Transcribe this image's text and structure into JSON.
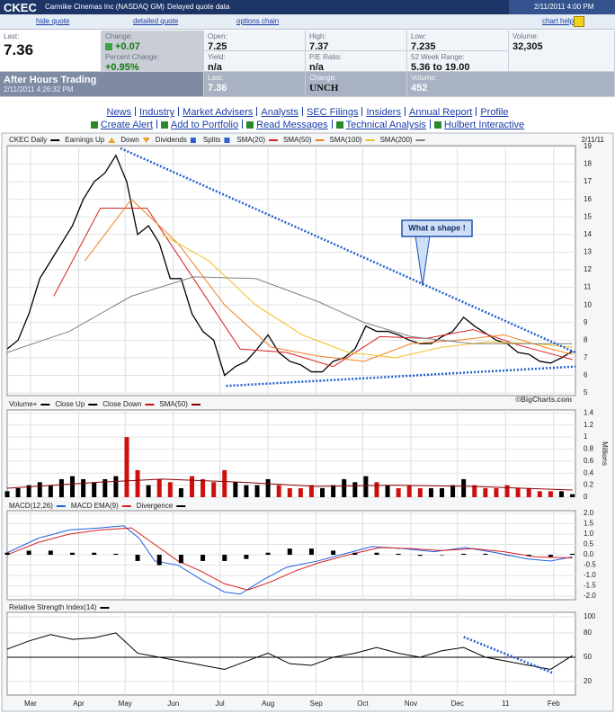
{
  "header": {
    "symbol": "CKEC",
    "company": "Carmike Cinemas Inc (NASDAQ GM)",
    "delay": "Delayed quote data",
    "datetime": "2/11/2011 4:00 PM"
  },
  "nav": [
    "hide quote",
    "detailed quote",
    "options chain",
    "chart help"
  ],
  "quote": {
    "last": {
      "label": "Last:",
      "value": "7.36"
    },
    "change": {
      "label": "Change:",
      "value": "+0.07"
    },
    "percent_change": {
      "label": "Percent Change:",
      "value": "+0.95%"
    },
    "open": {
      "label": "Open:",
      "value": "7.25"
    },
    "yield": {
      "label": "Yield:",
      "value": "n/a"
    },
    "high": {
      "label": "High:",
      "value": "7.37"
    },
    "pe_ratio": {
      "label": "P/E Ratio:",
      "value": "n/a"
    },
    "low": {
      "label": "Low:",
      "value": "7.235"
    },
    "week52_range": {
      "label": "52 Week Range:",
      "value": "5.36 to 19.00"
    },
    "volume": {
      "label": "Volume:",
      "value": "32,305"
    }
  },
  "after_hours": {
    "title": "After Hours Trading",
    "datetime": "2/11/2011 4:26:32 PM",
    "last": {
      "label": "Last:",
      "value": "7.36"
    },
    "change": {
      "label": "Change:",
      "value": "UNCH"
    },
    "volume": {
      "label": "Volume:",
      "value": "452"
    }
  },
  "links": {
    "row1": [
      "News",
      "Industry",
      "Market Advisers",
      "Analysts",
      "SEC Filings",
      "Insiders",
      "Annual Report",
      "Profile"
    ],
    "row2": [
      "Create Alert",
      "Add to Portfolio",
      "Read Messages",
      "Technical Analysis",
      "Hulbert Interactive"
    ]
  },
  "chart_data": [
    {
      "type": "line",
      "title": "CKEC Daily",
      "date": "2/11/11",
      "source": "©BigCharts.com",
      "markers_legend": [
        "Earnings Up",
        "Down",
        "Dividends",
        "Splits"
      ],
      "annotation": {
        "text": "What a shape !"
      },
      "xlim": [
        0,
        366
      ],
      "xticks": [
        {
          "value": 15,
          "label": "Mar"
        },
        {
          "value": 46,
          "label": "Apr"
        },
        {
          "value": 76,
          "label": "May"
        },
        {
          "value": 107,
          "label": "Jun"
        },
        {
          "value": 137,
          "label": "Jul"
        },
        {
          "value": 168,
          "label": "Aug"
        },
        {
          "value": 199,
          "label": "Sep"
        },
        {
          "value": 229,
          "label": "Oct"
        },
        {
          "value": 260,
          "label": "Nov"
        },
        {
          "value": 290,
          "label": "Dec"
        },
        {
          "value": 321,
          "label": "11"
        },
        {
          "value": 352,
          "label": "Feb"
        }
      ],
      "ylim": [
        4.85,
        19.05
      ],
      "yticks": [
        5,
        6,
        7,
        8,
        9,
        10,
        11,
        12,
        13,
        14,
        15,
        16,
        17,
        18,
        19
      ],
      "series": [
        {
          "color": "#000000",
          "style": "line",
          "x": [
            0,
            7,
            14,
            21,
            28,
            35,
            42,
            49,
            56,
            63,
            70,
            77,
            84,
            91,
            98,
            105,
            112,
            119,
            126,
            133,
            140,
            147,
            154,
            161,
            168,
            175,
            182,
            189,
            196,
            203,
            210,
            217,
            224,
            231,
            238,
            245,
            252,
            259,
            266,
            273,
            280,
            287,
            294,
            301,
            308,
            315,
            322,
            329,
            336,
            343,
            350,
            357,
            364
          ],
          "values": [
            7.5,
            8.0,
            9.5,
            11.5,
            12.5,
            13.5,
            14.5,
            16,
            17,
            17.5,
            18.5,
            17,
            14,
            14.5,
            13.5,
            11.5,
            11.5,
            9.5,
            8.5,
            8,
            6,
            6.5,
            6.8,
            7.5,
            8.3,
            7.3,
            6.8,
            6.6,
            6.2,
            6.2,
            6.8,
            7.0,
            7.5,
            8.8,
            8.5,
            8.5,
            8.3,
            8.0,
            7.8,
            7.8,
            8.2,
            8.5,
            9.3,
            8.8,
            8.4,
            8.0,
            7.8,
            7.3,
            7.2,
            6.8,
            6.7,
            7.0,
            7.36
          ]
        },
        {
          "name": "SMA(20)",
          "color": "#d62020",
          "style": "line",
          "x": [
            30,
            60,
            90,
            120,
            150,
            180,
            210,
            240,
            270,
            300,
            330,
            364
          ],
          "values": [
            10.5,
            15.5,
            15.5,
            11.5,
            7.5,
            7.3,
            6.5,
            8.2,
            8.1,
            8.6,
            7.7,
            6.9
          ]
        },
        {
          "name": "SMA(50)",
          "color": "#f08020",
          "style": "line",
          "x": [
            50,
            80,
            110,
            140,
            170,
            200,
            230,
            260,
            290,
            320,
            350,
            364
          ],
          "values": [
            12.5,
            16,
            13.5,
            10,
            7.6,
            7.1,
            6.8,
            7.8,
            8.0,
            8.3,
            7.5,
            7.2
          ]
        },
        {
          "name": "SMA(100)",
          "color": "#f0c020",
          "style": "line",
          "x": [
            100,
            130,
            160,
            190,
            220,
            250,
            280,
            310,
            340,
            364
          ],
          "values": [
            14,
            12.5,
            10,
            8.3,
            7.3,
            7.0,
            7.6,
            7.9,
            7.8,
            7.6
          ]
        },
        {
          "name": "SMA(200)",
          "color": "#808080",
          "style": "line",
          "x": [
            0,
            40,
            80,
            120,
            160,
            200,
            230,
            260,
            300,
            340,
            364
          ],
          "values": [
            7.3,
            8.5,
            10.5,
            11.6,
            11.5,
            10.2,
            9,
            8.2,
            7.8,
            7.8,
            7.8
          ]
        }
      ],
      "trendlines": [
        {
          "x": [
            73,
            366
          ],
          "values": [
            18.9,
            7.3
          ]
        },
        {
          "x": [
            141,
            366
          ],
          "values": [
            5.4,
            6.5
          ]
        }
      ]
    },
    {
      "type": "bar",
      "title": "Volume+",
      "y_label": "Millions",
      "xlim": [
        0,
        366
      ],
      "xticks": [
        {
          "value": 15,
          "label": "Mar"
        },
        {
          "value": 46,
          "label": "Apr"
        },
        {
          "value": 76,
          "label": "May"
        },
        {
          "value": 107,
          "label": "Jun"
        },
        {
          "value": 137,
          "label": "Jul"
        },
        {
          "value": 168,
          "label": "Aug"
        },
        {
          "value": 199,
          "label": "Sep"
        },
        {
          "value": 229,
          "label": "Oct"
        },
        {
          "value": 260,
          "label": "Nov"
        },
        {
          "value": 290,
          "label": "Dec"
        },
        {
          "value": 321,
          "label": "11"
        },
        {
          "value": 352,
          "label": "Feb"
        }
      ],
      "ylim": [
        0,
        1.45
      ],
      "yticks": [
        0,
        0.2,
        0.4,
        0.6,
        0.8,
        1,
        1.2,
        1.4
      ],
      "series": [
        {
          "name": "Close Up",
          "color": "#000000",
          "style": "bar",
          "x": [
            0,
            7,
            14,
            21,
            28,
            35,
            42,
            49,
            56,
            63,
            70,
            91,
            112,
            147,
            154,
            161,
            168,
            203,
            210,
            217,
            224,
            231,
            245,
            273,
            280,
            287,
            294,
            357,
            364
          ],
          "values": [
            0.1,
            0.15,
            0.2,
            0.25,
            0.2,
            0.3,
            0.35,
            0.3,
            0.25,
            0.3,
            0.35,
            0.2,
            0.15,
            0.25,
            0.2,
            0.2,
            0.3,
            0.15,
            0.2,
            0.3,
            0.25,
            0.35,
            0.2,
            0.15,
            0.15,
            0.2,
            0.3,
            0.1,
            0.05
          ]
        },
        {
          "name": "Close Down",
          "color": "#cc1010",
          "style": "bar",
          "x": [
            77,
            84,
            98,
            105,
            119,
            126,
            133,
            140,
            175,
            182,
            189,
            196,
            238,
            252,
            259,
            266,
            301,
            308,
            315,
            322,
            329,
            336,
            343,
            350
          ],
          "values": [
            1.0,
            0.45,
            0.3,
            0.25,
            0.35,
            0.3,
            0.25,
            0.45,
            0.2,
            0.15,
            0.15,
            0.2,
            0.25,
            0.15,
            0.2,
            0.15,
            0.2,
            0.15,
            0.15,
            0.2,
            0.15,
            0.15,
            0.1,
            0.1
          ]
        },
        {
          "name": "SMA(50)",
          "color": "#8b0000",
          "style": "line",
          "x": [
            0,
            60,
            100,
            150,
            200,
            250,
            300,
            364
          ],
          "values": [
            0.15,
            0.25,
            0.3,
            0.25,
            0.18,
            0.2,
            0.18,
            0.12
          ]
        }
      ]
    },
    {
      "type": "line",
      "xlim": [
        0,
        366
      ],
      "xticks": [
        {
          "value": 15,
          "label": "Mar"
        },
        {
          "value": 46,
          "label": "Apr"
        },
        {
          "value": 76,
          "label": "May"
        },
        {
          "value": 107,
          "label": "Jun"
        },
        {
          "value": 137,
          "label": "Jul"
        },
        {
          "value": 168,
          "label": "Aug"
        },
        {
          "value": 199,
          "label": "Sep"
        },
        {
          "value": 229,
          "label": "Oct"
        },
        {
          "value": 260,
          "label": "Nov"
        },
        {
          "value": 290,
          "label": "Dec"
        },
        {
          "value": 321,
          "label": "11"
        },
        {
          "value": 352,
          "label": "Feb"
        }
      ],
      "ylim": [
        -2.17,
        2.13
      ],
      "yticks": [
        {
          "value": 2,
          "label": "2.0"
        },
        1.5,
        {
          "value": 1,
          "label": "1.0"
        },
        0.5,
        {
          "value": 0,
          "label": "0.0"
        },
        -0.5,
        {
          "value": -1,
          "label": "-1.0"
        },
        -1.5,
        {
          "value": -2,
          "label": "-2.0"
        }
      ],
      "series": [
        {
          "name": "MACD(12,26)",
          "color": "#2060e0",
          "style": "line",
          "x": [
            0,
            20,
            40,
            60,
            75,
            85,
            95,
            110,
            125,
            140,
            150,
            165,
            180,
            200,
            215,
            235,
            255,
            275,
            295,
            315,
            335,
            350,
            364
          ],
          "values": [
            0.1,
            0.8,
            1.2,
            1.3,
            1.4,
            0.8,
            -0.3,
            -0.5,
            -1.2,
            -1.8,
            -1.9,
            -1.2,
            -0.6,
            -0.3,
            0.0,
            0.4,
            0.3,
            0.15,
            0.35,
            0.1,
            -0.2,
            -0.3,
            -0.1
          ]
        },
        {
          "name": "MACD EMA(9)",
          "color": "#d62020",
          "style": "line",
          "x": [
            0,
            20,
            40,
            60,
            80,
            95,
            110,
            125,
            140,
            155,
            170,
            185,
            200,
            220,
            240,
            260,
            280,
            300,
            320,
            340,
            364
          ],
          "values": [
            0.0,
            0.6,
            1.0,
            1.2,
            1.3,
            0.5,
            -0.3,
            -0.8,
            -1.4,
            -1.7,
            -1.3,
            -0.8,
            -0.4,
            0.0,
            0.35,
            0.3,
            0.2,
            0.3,
            0.15,
            -0.1,
            -0.15
          ]
        },
        {
          "name": "Divergence",
          "color": "#000000",
          "style": "bar",
          "x": [
            0,
            14,
            28,
            42,
            56,
            70,
            84,
            98,
            112,
            126,
            140,
            154,
            168,
            182,
            196,
            210,
            224,
            238,
            252,
            266,
            280,
            294,
            308,
            322,
            336,
            350,
            364
          ],
          "values": [
            0.1,
            0.2,
            0.2,
            0.1,
            0.1,
            0.05,
            -0.3,
            -0.5,
            -0.4,
            -0.3,
            -0.3,
            -0.2,
            0.1,
            0.3,
            0.3,
            0.2,
            0.1,
            0.1,
            0.05,
            -0.05,
            0,
            0.05,
            0.05,
            0,
            -0.05,
            -0.1,
            0.05
          ]
        }
      ]
    },
    {
      "type": "line",
      "xlim": [
        0,
        366
      ],
      "xticks": [
        {
          "value": 15,
          "label": "Mar"
        },
        {
          "value": 46,
          "label": "Apr"
        },
        {
          "value": 76,
          "label": "May"
        },
        {
          "value": 107,
          "label": "Jun"
        },
        {
          "value": 137,
          "label": "Jul"
        },
        {
          "value": 168,
          "label": "Aug"
        },
        {
          "value": 199,
          "label": "Sep"
        },
        {
          "value": 229,
          "label": "Oct"
        },
        {
          "value": 260,
          "label": "Nov"
        },
        {
          "value": 290,
          "label": "Dec"
        },
        {
          "value": 321,
          "label": "11"
        },
        {
          "value": 352,
          "label": "Feb"
        }
      ],
      "ylim": [
        3.3,
        105.5
      ],
      "yticks": [
        20,
        50,
        80,
        100
      ],
      "hlines": [
        50
      ],
      "series": [
        {
          "name": "Relative Strength Index(14)",
          "color": "#000000",
          "style": "line",
          "x": [
            0,
            14,
            28,
            42,
            56,
            70,
            84,
            98,
            112,
            126,
            140,
            154,
            168,
            182,
            196,
            210,
            224,
            238,
            252,
            266,
            280,
            294,
            308,
            322,
            336,
            350,
            364
          ],
          "values": [
            60,
            70,
            78,
            72,
            74,
            80,
            55,
            50,
            45,
            40,
            35,
            45,
            55,
            42,
            40,
            50,
            55,
            62,
            55,
            50,
            58,
            62,
            50,
            45,
            40,
            35,
            52
          ]
        }
      ],
      "trendlines": [
        {
          "x": [
            294,
            352
          ],
          "values": [
            75,
            30
          ]
        }
      ]
    }
  ]
}
